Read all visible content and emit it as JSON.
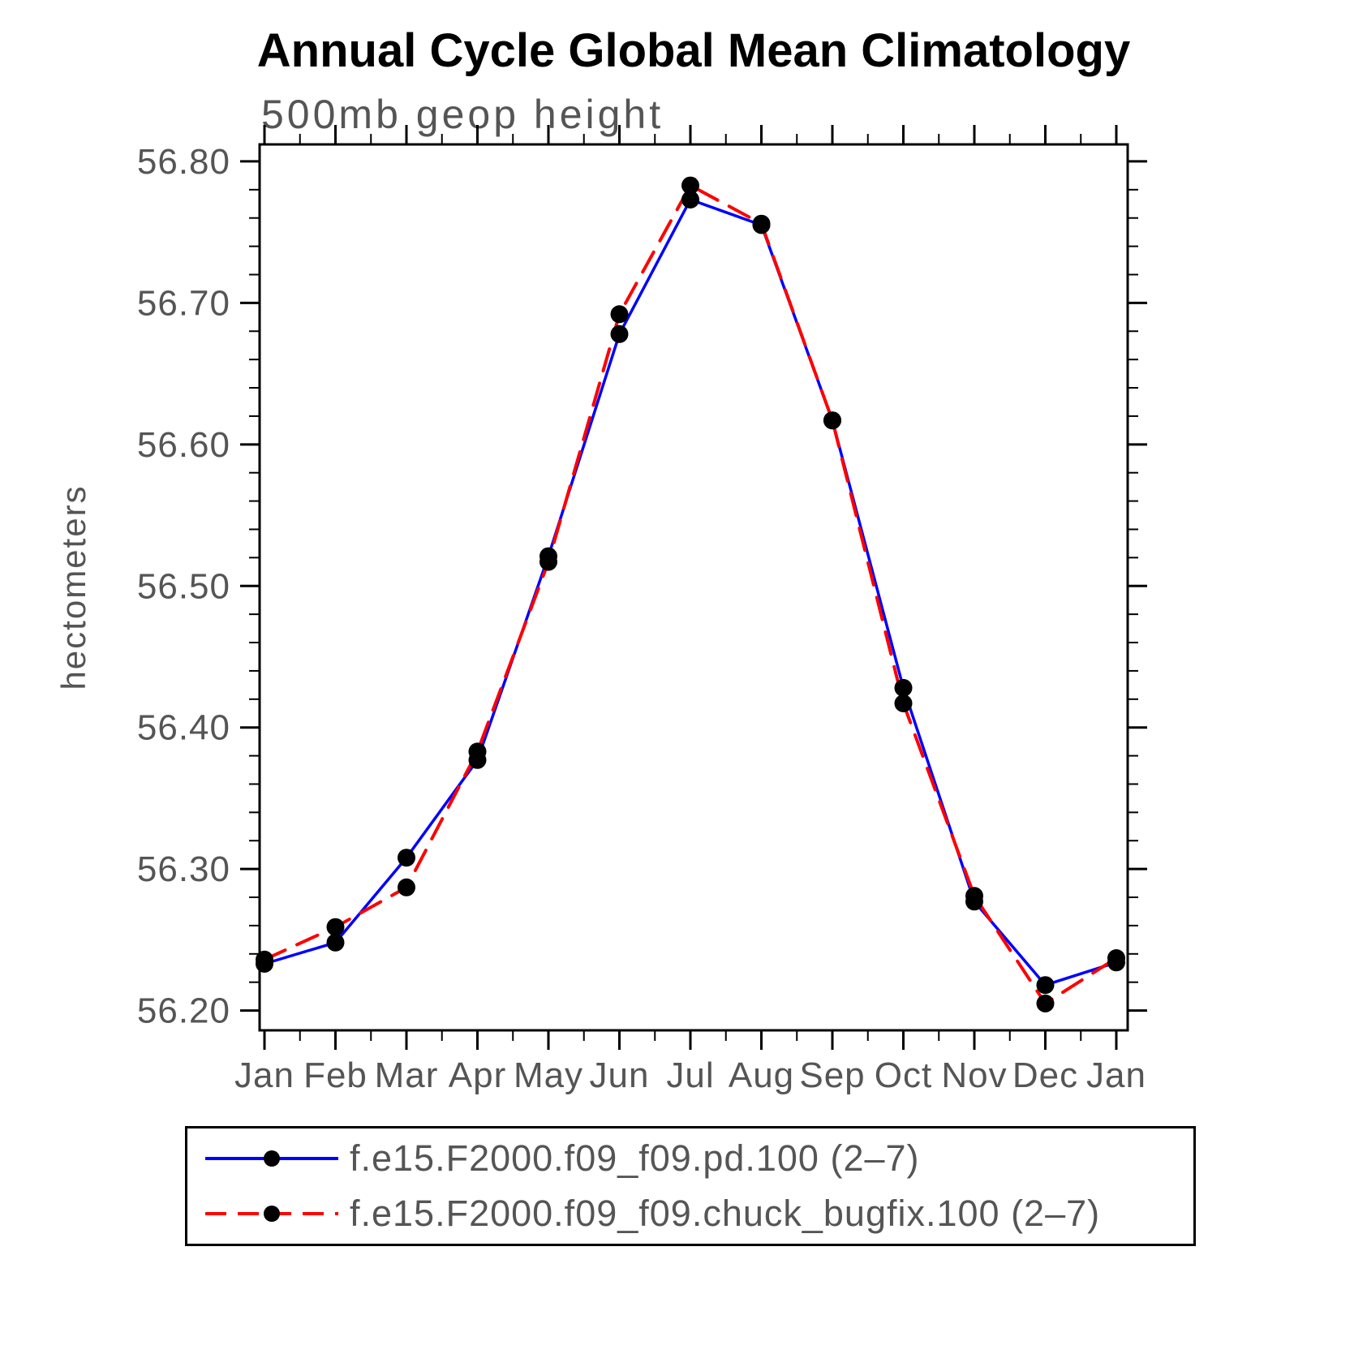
{
  "chart_data": {
    "type": "line",
    "title": "Annual Cycle Global Mean Climatology",
    "subtitle": "500mb geop height",
    "xlabel": "",
    "ylabel": "hectometers",
    "categories": [
      "Jan",
      "Feb",
      "Mar",
      "Apr",
      "May",
      "Jun",
      "Jul",
      "Aug",
      "Sep",
      "Oct",
      "Nov",
      "Dec",
      "Jan"
    ],
    "series": [
      {
        "name": "f.e15.F2000.f09_f09.pd.100 (2–7)",
        "color": "#0000ff",
        "line_style": "solid",
        "values": [
          56.233,
          56.248,
          56.308,
          56.377,
          56.521,
          56.678,
          56.773,
          56.755,
          56.617,
          56.428,
          56.277,
          56.218,
          56.234
        ]
      },
      {
        "name": "f.e15.F2000.f09_f09.chuck_bugfix.100 (2–7)",
        "color": "#ff0000",
        "line_style": "dashed",
        "values": [
          56.236,
          56.259,
          56.287,
          56.383,
          56.517,
          56.692,
          56.783,
          56.756,
          56.617,
          56.417,
          56.281,
          56.205,
          56.237
        ]
      }
    ],
    "marker": {
      "shape": "circle",
      "color": "#000000"
    },
    "ylim": [
      56.186,
      56.812
    ],
    "yticks": [
      "56.20",
      "56.30",
      "56.40",
      "56.50",
      "56.60",
      "56.70",
      "56.80"
    ],
    "y_minor_step": 0.02,
    "grid": false,
    "legend_position": "bottom",
    "text_color": "#555555",
    "frame_color": "#000000"
  }
}
